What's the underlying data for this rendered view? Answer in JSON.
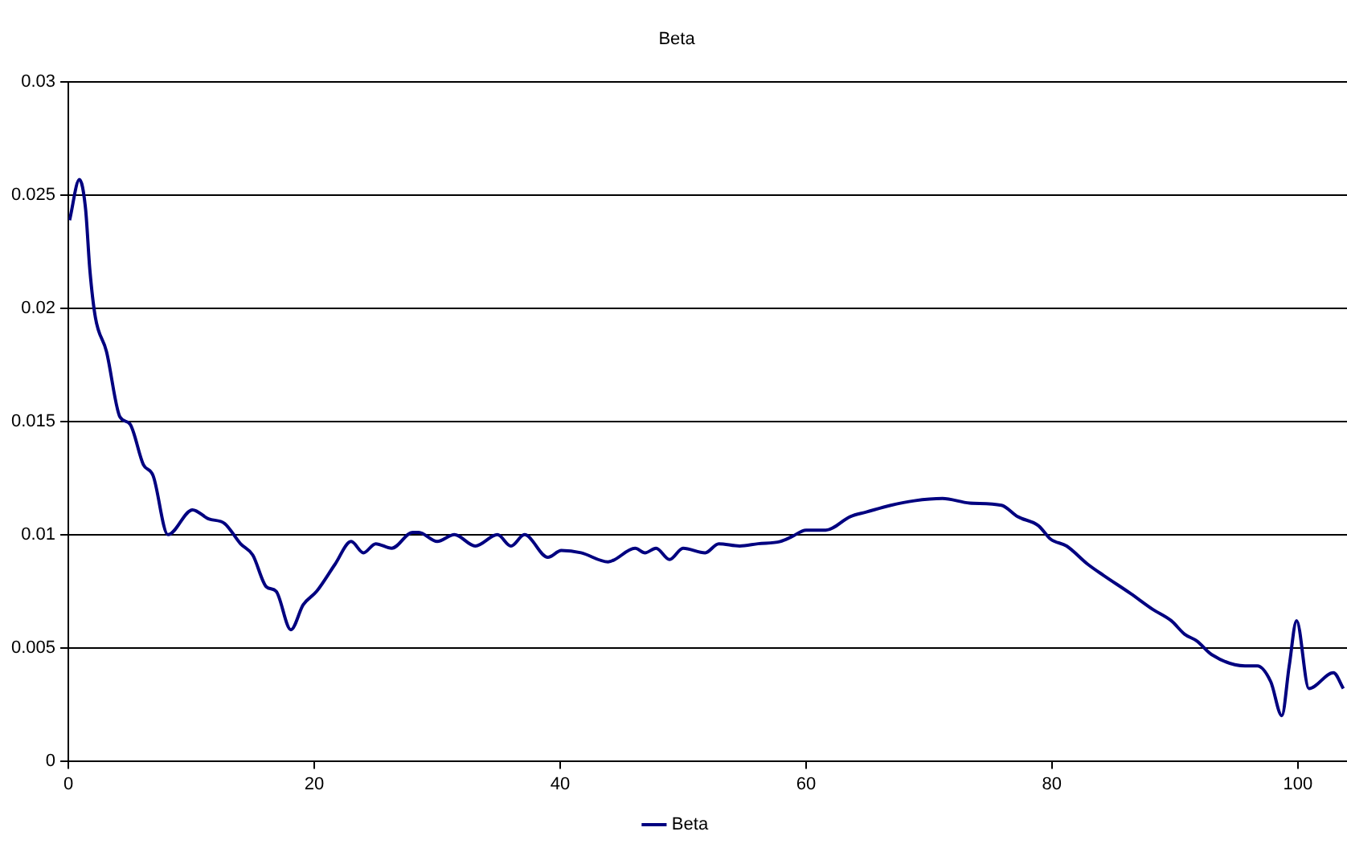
{
  "chart_data": {
    "type": "line",
    "title": "Beta",
    "xlim": [
      0,
      104
    ],
    "xticks": [
      0,
      20,
      40,
      60,
      80,
      100
    ],
    "ylim": [
      0,
      0.03
    ],
    "yticks": [
      0,
      0.005,
      0.01,
      0.015,
      0.02,
      0.025,
      0.03
    ],
    "grid": "y",
    "legend": "bottom",
    "marker": "none",
    "line_style": "solid",
    "series": [
      {
        "name": "Beta",
        "color": "#000080",
        "x": [
          0.1,
          0.9,
          1.4,
          1.75,
          2.2,
          3.1,
          4.2,
          5.0,
          6.1,
          6.9,
          8.1,
          10.1,
          11.4,
          12.7,
          14.0,
          15.0,
          16.1,
          16.9,
          18.1,
          19.1,
          20.2,
          21.7,
          23.0,
          24.0,
          25.0,
          26.3,
          28.0,
          28.5,
          30.0,
          31.4,
          33.1,
          34.9,
          36.0,
          37.1,
          39.0,
          40.1,
          41.7,
          43.9,
          46.1,
          46.9,
          47.8,
          48.9,
          50.0,
          51.8,
          52.9,
          54.6,
          56.1,
          57.9,
          58.8,
          60.0,
          61.6,
          63.6,
          64.9,
          66.9,
          68.8,
          71.1,
          73.3,
          75.9,
          77.2,
          78.9,
          79.9,
          81.2,
          82.9,
          84.2,
          86.4,
          88.2,
          89.7,
          90.8,
          91.8,
          93.0,
          95.7,
          96.7,
          97.8,
          98.7,
          99.3,
          99.9,
          100.9,
          102.9,
          103.7
        ],
        "values": [
          0.0239,
          0.0257,
          0.0244,
          0.0217,
          0.0196,
          0.0181,
          0.0152,
          0.0149,
          0.0131,
          0.0126,
          0.01,
          0.0111,
          0.0107,
          0.0105,
          0.0096,
          0.0091,
          0.0077,
          0.0075,
          0.0058,
          0.0069,
          0.0075,
          0.0087,
          0.0097,
          0.0092,
          0.0096,
          0.0094,
          0.0101,
          0.0101,
          0.0097,
          0.01,
          0.0095,
          0.01,
          0.0095,
          0.01,
          0.009,
          0.0093,
          0.0092,
          0.0088,
          0.0094,
          0.0092,
          0.0094,
          0.0089,
          0.0094,
          0.0092,
          0.0096,
          0.0095,
          0.0096,
          0.0097,
          0.0099,
          0.0102,
          0.0102,
          0.0108,
          0.011,
          0.0113,
          0.0115,
          0.0116,
          0.0114,
          0.0113,
          0.0108,
          0.0104,
          0.0098,
          0.0095,
          0.0087,
          0.0082,
          0.0074,
          0.0067,
          0.0062,
          0.0056,
          0.0053,
          0.0047,
          0.0042,
          0.0042,
          0.0035,
          0.002,
          0.0042,
          0.0062,
          0.0032,
          0.0039,
          0.0032
        ]
      }
    ]
  }
}
